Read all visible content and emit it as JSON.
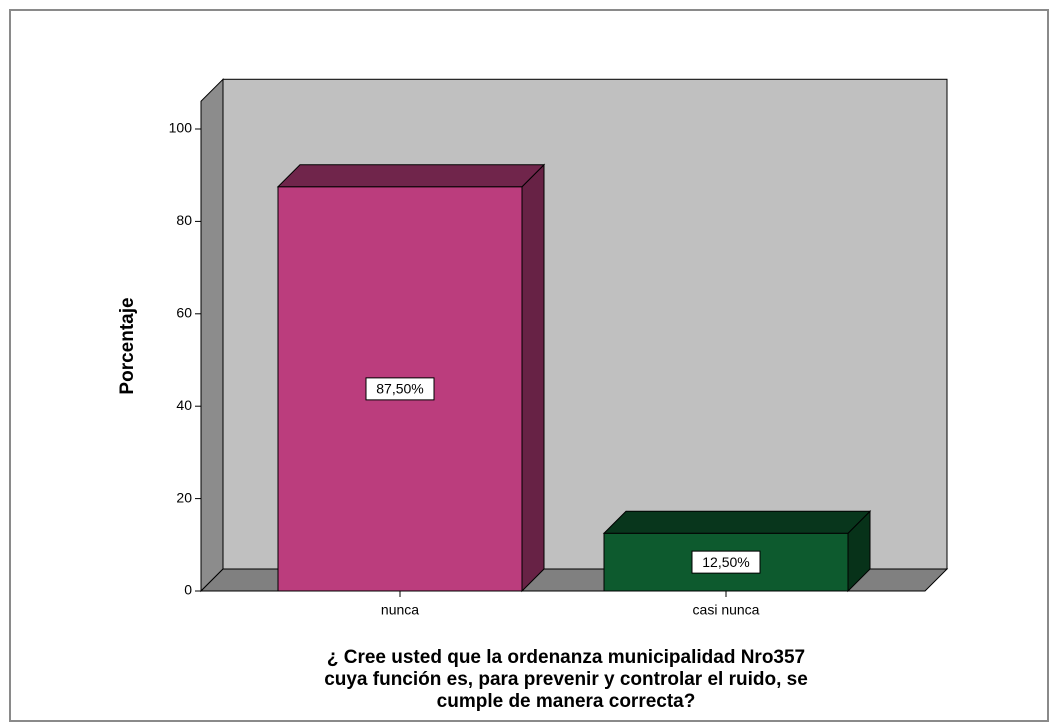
{
  "chart_data": {
    "type": "bar3d",
    "ylabel": "Porcentaje",
    "xlabel_lines": [
      "¿ Cree usted  que la ordenanza  municipalidad Nro357",
      "cuya  función  es,  para prevenir y controlar el ruido, se",
      "cumple de manera correcta?"
    ],
    "categories": [
      "nunca",
      "casi nunca"
    ],
    "values": [
      87.5,
      12.5
    ],
    "value_labels": [
      "87,50%",
      "12,50%"
    ],
    "colors": [
      "#bb3d7d",
      "#0d5a2e"
    ],
    "ylim": [
      0,
      106
    ],
    "yticks": [
      0,
      20,
      40,
      60,
      80,
      100
    ]
  }
}
